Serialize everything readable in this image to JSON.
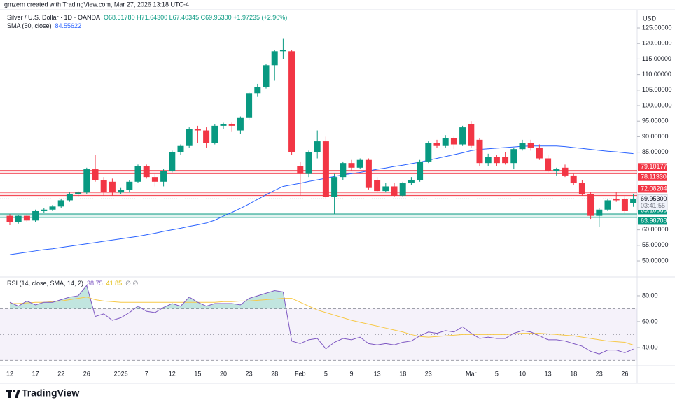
{
  "header": {
    "credit": "gmzern created with TradingView.com, Mar 27, 2026 13:18 UTC-4"
  },
  "footer": {
    "brand": "TradingView"
  },
  "chart_data": [
    {
      "type": "candlestick",
      "title": "Silver / U.S. Dollar · 1D · OANDA",
      "ohlc_legend": "O68.51780 H71.64300 L67.40345 C69.95300 +1.97235 (+2.90%)",
      "currency": "USD",
      "categories": [
        "12",
        null,
        null,
        "17",
        null,
        null,
        "22",
        null,
        null,
        "26",
        null,
        null,
        null,
        "2026",
        null,
        null,
        "7",
        null,
        null,
        "12",
        null,
        null,
        "15",
        null,
        null,
        "20",
        null,
        null,
        "23",
        null,
        null,
        "28",
        null,
        null,
        "Feb",
        null,
        null,
        "5",
        null,
        null,
        "9",
        null,
        null,
        "13",
        null,
        null,
        "18",
        null,
        null,
        "23",
        null,
        null,
        null,
        null,
        "Mar",
        null,
        null,
        "5",
        null,
        null,
        "10",
        null,
        null,
        "13",
        null,
        null,
        "18",
        null,
        null,
        "23",
        null,
        null,
        "26",
        null
      ],
      "open": [
        64.5,
        62.5,
        64.5,
        63,
        66,
        66.5,
        67.5,
        69.5,
        71.5,
        72,
        79.5,
        76,
        75.5,
        72,
        72.8,
        75.5,
        80.5,
        77,
        75.5,
        79,
        85,
        87,
        92.5,
        92,
        88,
        93.5,
        94,
        92,
        96,
        104,
        106,
        113,
        117.5,
        117.5,
        80.5,
        78,
        85,
        88.5,
        70.5,
        77,
        81.5,
        80,
        82.5,
        76,
        72.5,
        74,
        71,
        75,
        76,
        82,
        88,
        87,
        89.5,
        87.5,
        94,
        89,
        81.5,
        83.5,
        83.5,
        81.5,
        86,
        88,
        86.5,
        83,
        79,
        80,
        77.5,
        75,
        71.5,
        64.5,
        66.5,
        70,
        70,
        68.5178
      ],
      "high": [
        65,
        64.8,
        65,
        66.5,
        67,
        68,
        70,
        72,
        72.5,
        80,
        84,
        77,
        76.5,
        73.5,
        76,
        81,
        81,
        78,
        79.5,
        85.5,
        87.5,
        93,
        93.5,
        93,
        94,
        94.5,
        94.5,
        96.5,
        104.5,
        107,
        113.5,
        118,
        121.5,
        118,
        82,
        85.5,
        92,
        90,
        78,
        82,
        82.5,
        83,
        83,
        77,
        75,
        75,
        75.5,
        77,
        82.5,
        88.5,
        89,
        90.5,
        90,
        93.5,
        95,
        89.5,
        84.5,
        84,
        85,
        86.5,
        89,
        89,
        87.5,
        84,
        80,
        81,
        78,
        76,
        72,
        67,
        70,
        72,
        71,
        71.643
      ],
      "low": [
        61.5,
        62,
        62.5,
        62.5,
        65.5,
        66,
        67,
        69,
        70.5,
        71.5,
        75.5,
        71,
        71,
        71.5,
        72,
        75,
        76.5,
        74,
        74,
        78.5,
        84,
        86.5,
        88,
        86.5,
        87.5,
        92.5,
        91.5,
        91,
        95.5,
        103,
        105.5,
        108,
        115,
        84,
        71,
        77,
        83,
        70,
        65,
        76,
        79,
        79.5,
        73,
        72,
        72,
        70.5,
        70.5,
        74.5,
        75.5,
        81.5,
        86.5,
        86.5,
        86,
        87,
        86.5,
        80.5,
        80.5,
        80.5,
        81,
        79.5,
        85.5,
        85.5,
        82.5,
        78.5,
        77.5,
        77,
        74.5,
        71,
        63.5,
        61,
        66,
        69,
        65.5,
        67.40345
      ],
      "close": [
        62.5,
        64.5,
        63,
        66,
        66.5,
        67.5,
        69.5,
        71.5,
        72,
        79.5,
        76,
        72,
        72,
        72.8,
        75.5,
        80.5,
        77,
        75.5,
        79,
        85,
        87,
        92.5,
        92,
        88,
        93.5,
        94,
        93.5,
        96,
        104,
        106,
        113,
        117.5,
        118,
        85,
        78,
        85,
        88.5,
        70.5,
        77,
        81.5,
        80,
        82.5,
        73.5,
        72.5,
        74,
        71,
        75,
        76,
        82,
        88,
        87,
        89.5,
        87.5,
        93,
        87,
        81.5,
        83.5,
        81.5,
        81.5,
        86,
        88,
        86.5,
        83,
        79,
        79.5,
        77.5,
        75,
        71.5,
        64.5,
        66.5,
        69.5,
        69.5,
        66,
        69.953
      ],
      "last_price_label": "69.95300",
      "countdown": "03:41:55",
      "up_color": "#089981",
      "down_color": "#f23645",
      "series": [
        {
          "name": "SMA (50, close)",
          "color": "#2962ff",
          "values": [
            52.0,
            52.4,
            52.8,
            53.2,
            53.6,
            53.9,
            54.3,
            54.7,
            55.1,
            55.5,
            55.9,
            56.3,
            56.7,
            57.1,
            57.5,
            57.9,
            58.4,
            58.9,
            59.5,
            60.0,
            60.5,
            61.1,
            61.6,
            62.2,
            63.1,
            64.4,
            65.6,
            66.9,
            68.3,
            69.8,
            71.3,
            72.7,
            74.0,
            74.5,
            75.0,
            75.6,
            76.1,
            76.6,
            77.2,
            77.7,
            78.1,
            78.5,
            79.0,
            79.5,
            79.9,
            80.4,
            80.8,
            81.3,
            81.8,
            82.4,
            83.0,
            83.6,
            84.2,
            84.8,
            85.5,
            85.9,
            86.1,
            86.3,
            86.5,
            86.7,
            86.9,
            87.0,
            87.0,
            87.0,
            87.0,
            86.8,
            86.5,
            86.2,
            85.9,
            85.6,
            85.3,
            85.1,
            84.8,
            84.55622
          ]
        }
      ],
      "zones": [
        {
          "color": "#f23645",
          "values": [
            79.10177,
            {
              "value": 78.1133,
              "label": "78.11330"
            }
          ]
        },
        {
          "color": "#f23645",
          "values": [
            72.08204,
            71.04087
          ]
        },
        {
          "color": "#089981",
          "values": [
            65.10069,
            63.98708
          ]
        }
      ],
      "ylim": [
        45.05,
        130.86
      ],
      "yticks": [
        {
          "value": 125,
          "label": "125.00000"
        },
        {
          "value": 120,
          "label": "120.00000"
        },
        {
          "value": 115,
          "label": "115.00000"
        },
        {
          "value": 110,
          "label": "110.00000"
        },
        {
          "value": 105,
          "label": "105.00000"
        },
        {
          "value": 100,
          "label": "100.00000"
        },
        {
          "value": 95,
          "label": "95.00000"
        },
        {
          "value": 90,
          "label": "90.00000"
        },
        {
          "value": 85,
          "label": "85.00000"
        },
        {
          "value": 60,
          "label": "60.00000"
        },
        {
          "value": 55,
          "label": "55.00000"
        },
        {
          "value": 50,
          "label": "50.00000"
        }
      ]
    },
    {
      "type": "line",
      "title": "RSI (14, close, SMA, 14, 2)",
      "extra": "∅ ∅",
      "series": [
        {
          "name": "RSI",
          "color": "#7e57c2",
          "values": [
            75,
            72,
            76,
            73,
            75,
            75,
            77,
            79,
            80,
            88,
            64,
            66,
            61,
            63,
            67,
            72,
            68,
            67,
            71,
            74,
            72,
            79,
            75,
            72,
            74,
            74,
            74,
            73,
            78,
            80,
            82,
            84,
            83,
            45,
            43,
            46,
            47,
            39,
            44,
            47,
            46,
            48,
            43,
            42,
            43,
            42,
            44,
            45,
            49,
            52,
            51,
            53,
            52,
            56,
            51,
            47,
            48,
            47,
            47,
            51,
            53,
            52,
            49,
            46,
            46,
            45,
            43,
            41,
            37,
            35,
            38,
            38,
            36,
            38.75
          ]
        },
        {
          "name": "RSI-based MA",
          "color": "#f7c948",
          "values": [
            74,
            74,
            74.5,
            75,
            75,
            75.5,
            76,
            77,
            78,
            79,
            77,
            76,
            75.5,
            75,
            75,
            75,
            75,
            75,
            75,
            75,
            75,
            75,
            75,
            75,
            75,
            75.5,
            75.5,
            76,
            76,
            76.5,
            77,
            77.5,
            78,
            78,
            75,
            72,
            69,
            67,
            65,
            63,
            61,
            59.5,
            58,
            56.5,
            55,
            53.5,
            52,
            50,
            48.5,
            48,
            48.5,
            49,
            49.5,
            50,
            50,
            50,
            50,
            50,
            50,
            50.5,
            51,
            51,
            51,
            50.5,
            50,
            49.5,
            49,
            48,
            47,
            46,
            45,
            44.5,
            44,
            41.85
          ]
        }
      ],
      "bands": [
        30,
        50,
        70
      ],
      "ylim": [
        25.9,
        93.5
      ],
      "yticks": [
        {
          "value": 80,
          "label": "80.00"
        },
        {
          "value": 60,
          "label": "60.00"
        },
        {
          "value": 40,
          "label": "40.00"
        }
      ]
    }
  ]
}
